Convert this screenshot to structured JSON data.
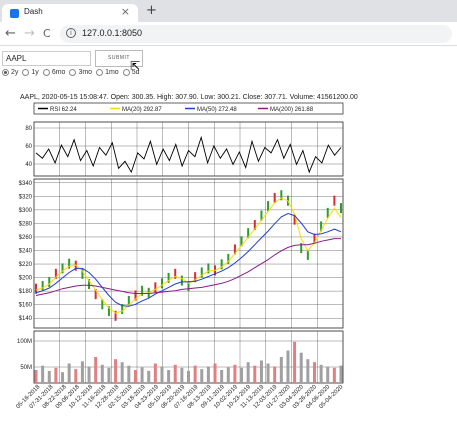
{
  "browser": {
    "tab_title": "Dash",
    "tab_close": "×",
    "new_tab": "+",
    "back": "←",
    "forward": "→",
    "reload": "C",
    "info": "i",
    "url": "127.0.0.1:8050"
  },
  "form": {
    "ticker_value": "AAPL",
    "submit_label": "SUBMIT",
    "periods": [
      {
        "label": "2y",
        "selected": true
      },
      {
        "label": "1y",
        "selected": false
      },
      {
        "label": "6mo",
        "selected": false
      },
      {
        "label": "3mo",
        "selected": false
      },
      {
        "label": "1mo",
        "selected": false
      },
      {
        "label": "5d",
        "selected": false
      }
    ]
  },
  "header_text": "AAPL, 2020-05-15 15:08:47. Open: 300.35. High: 307.90. Low: 300.21. Close: 307.71. Volume: 41561200.00",
  "legend": [
    {
      "label": "RSI 62.24",
      "color": "#000000"
    },
    {
      "label": "MA(20) 292.87",
      "color": "#ffd700"
    },
    {
      "label": "MA(50) 272.48",
      "color": "#1f3fd0"
    },
    {
      "label": "MA(200) 261.88",
      "color": "#8b1a8b"
    }
  ],
  "chart_data": {
    "type": "line",
    "panels": [
      {
        "name": "rsi",
        "yticks": [
          40,
          60,
          80
        ],
        "ylim": [
          25,
          95
        ]
      },
      {
        "name": "price",
        "yticks": [
          "$140",
          "$160",
          "$180",
          "$200",
          "$220",
          "$240",
          "$260",
          "$280",
          "$300",
          "$320",
          "$340"
        ],
        "ylim": [
          130,
          350
        ]
      },
      {
        "name": "volume",
        "yticks": [
          "50M",
          "100M"
        ],
        "ylim": [
          0,
          120
        ]
      }
    ],
    "x_tick_labels": [
      "05-16-2018",
      "07-31-2018",
      "08-22-2018",
      "09-06-2018",
      "10-12-2018",
      "11-16-2018",
      "12-28-2018",
      "02-15-2019",
      "03-18-2019",
      "04-23-2019",
      "05-10-2019",
      "06-20-2019",
      "07-16-2019",
      "08-13-2019",
      "09-11-2019",
      "10-02-2019",
      "10-23-2019",
      "11-13-2019",
      "12-03-2019",
      "01-27-2020",
      "03-04-2020",
      "03-26-2020",
      "04-06-2020",
      "05-04-2020"
    ],
    "series": [
      {
        "name": "RSI",
        "values": [
          55,
          48,
          60,
          42,
          65,
          50,
          72,
          45,
          58,
          38,
          62,
          52,
          68,
          35,
          44,
          30,
          55,
          47,
          70,
          40,
          60,
          45,
          66,
          38,
          58,
          50,
          75,
          42,
          64,
          48,
          60,
          40,
          56,
          36,
          70,
          44,
          62,
          55,
          72,
          48,
          66,
          40,
          58,
          30,
          50,
          42,
          65,
          52,
          62
        ]
      },
      {
        "name": "Price",
        "values": [
          188,
          192,
          198,
          210,
          218,
          225,
          222,
          210,
          195,
          180,
          165,
          155,
          148,
          158,
          170,
          178,
          185,
          182,
          190,
          196,
          204,
          210,
          200,
          192,
          205,
          212,
          218,
          215,
          224,
          232,
          246,
          258,
          270,
          282,
          296,
          310,
          322,
          326,
          318,
          290,
          248,
          238,
          262,
          280,
          300,
          318,
          307
        ]
      },
      {
        "name": "MA(20)",
        "values": [
          186,
          189,
          195,
          205,
          214,
          221,
          223,
          214,
          200,
          186,
          172,
          160,
          152,
          155,
          164,
          173,
          181,
          182,
          187,
          193,
          200,
          206,
          203,
          196,
          201,
          208,
          214,
          215,
          220,
          228,
          240,
          252,
          264,
          276,
          289,
          302,
          315,
          322,
          318,
          298,
          262,
          244,
          256,
          274,
          292,
          307,
          293
        ]
      },
      {
        "name": "MA(50)",
        "values": [
          182,
          185,
          189,
          196,
          204,
          212,
          218,
          218,
          212,
          202,
          190,
          178,
          168,
          163,
          162,
          165,
          170,
          174,
          180,
          185,
          190,
          195,
          198,
          198,
          199,
          202,
          206,
          210,
          214,
          219,
          226,
          234,
          243,
          253,
          263,
          273,
          284,
          294,
          299,
          296,
          285,
          272,
          268,
          269,
          272,
          276,
          272
        ]
      },
      {
        "name": "MA(200)",
        "values": [
          178,
          180,
          182,
          185,
          188,
          190,
          192,
          193,
          193,
          192,
          190,
          188,
          186,
          184,
          182,
          181,
          181,
          181,
          182,
          183,
          184,
          185,
          187,
          188,
          189,
          190,
          192,
          194,
          196,
          199,
          203,
          208,
          213,
          219,
          225,
          231,
          238,
          244,
          249,
          252,
          253,
          253,
          255,
          258,
          260,
          262,
          262
        ]
      },
      {
        "name": "Volume",
        "values": [
          30,
          40,
          28,
          35,
          25,
          45,
          32,
          50,
          38,
          60,
          42,
          35,
          55,
          48,
          40,
          30,
          36,
          28,
          45,
          38,
          30,
          42,
          35,
          28,
          40,
          32,
          38,
          45,
          30,
          36,
          42,
          35,
          48,
          40,
          52,
          45,
          38,
          60,
          75,
          95,
          70,
          55,
          48,
          42,
          38,
          35,
          40
        ]
      }
    ]
  }
}
